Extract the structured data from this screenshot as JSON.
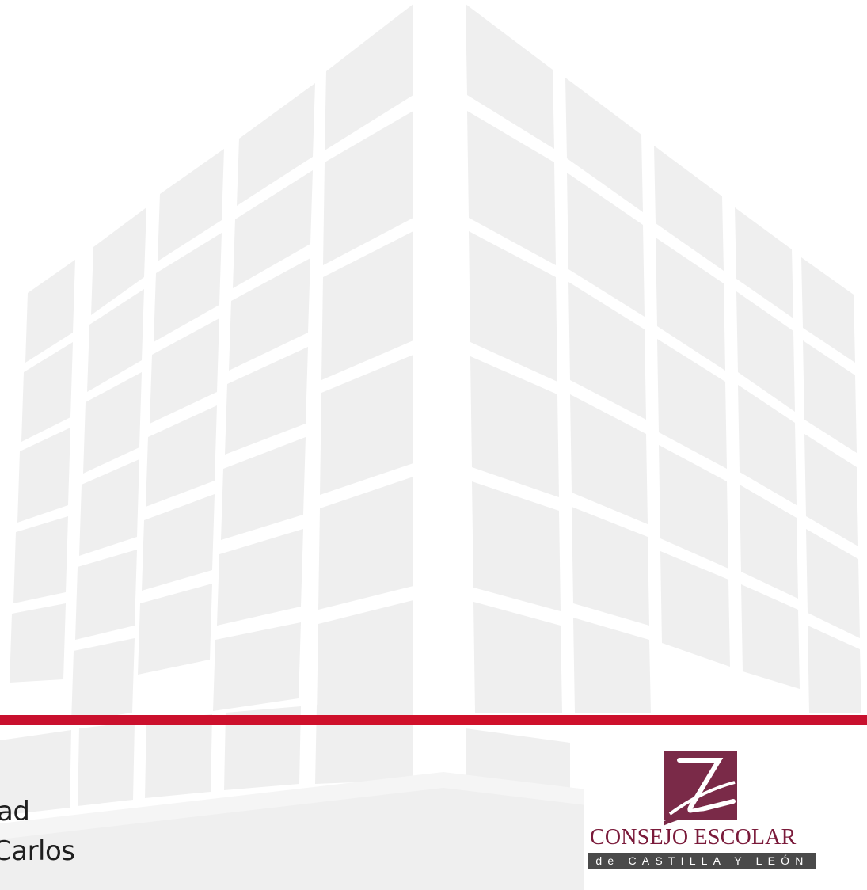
{
  "left_text": {
    "line1": "ad",
    "line2": "Carlos"
  },
  "logo": {
    "name": "consejo-escolar-logo",
    "title": "CONSEJO ESCOLAR",
    "subtitle": "de CASTILLA Y LEÓN",
    "colors": {
      "mark": "#7a2a48",
      "title": "#7a1a3a",
      "subtitle_bg": "#4a4a4a"
    }
  },
  "colors": {
    "background": "#ffffff",
    "building_tile": "#efefef",
    "accent_red": "#c8102e"
  }
}
